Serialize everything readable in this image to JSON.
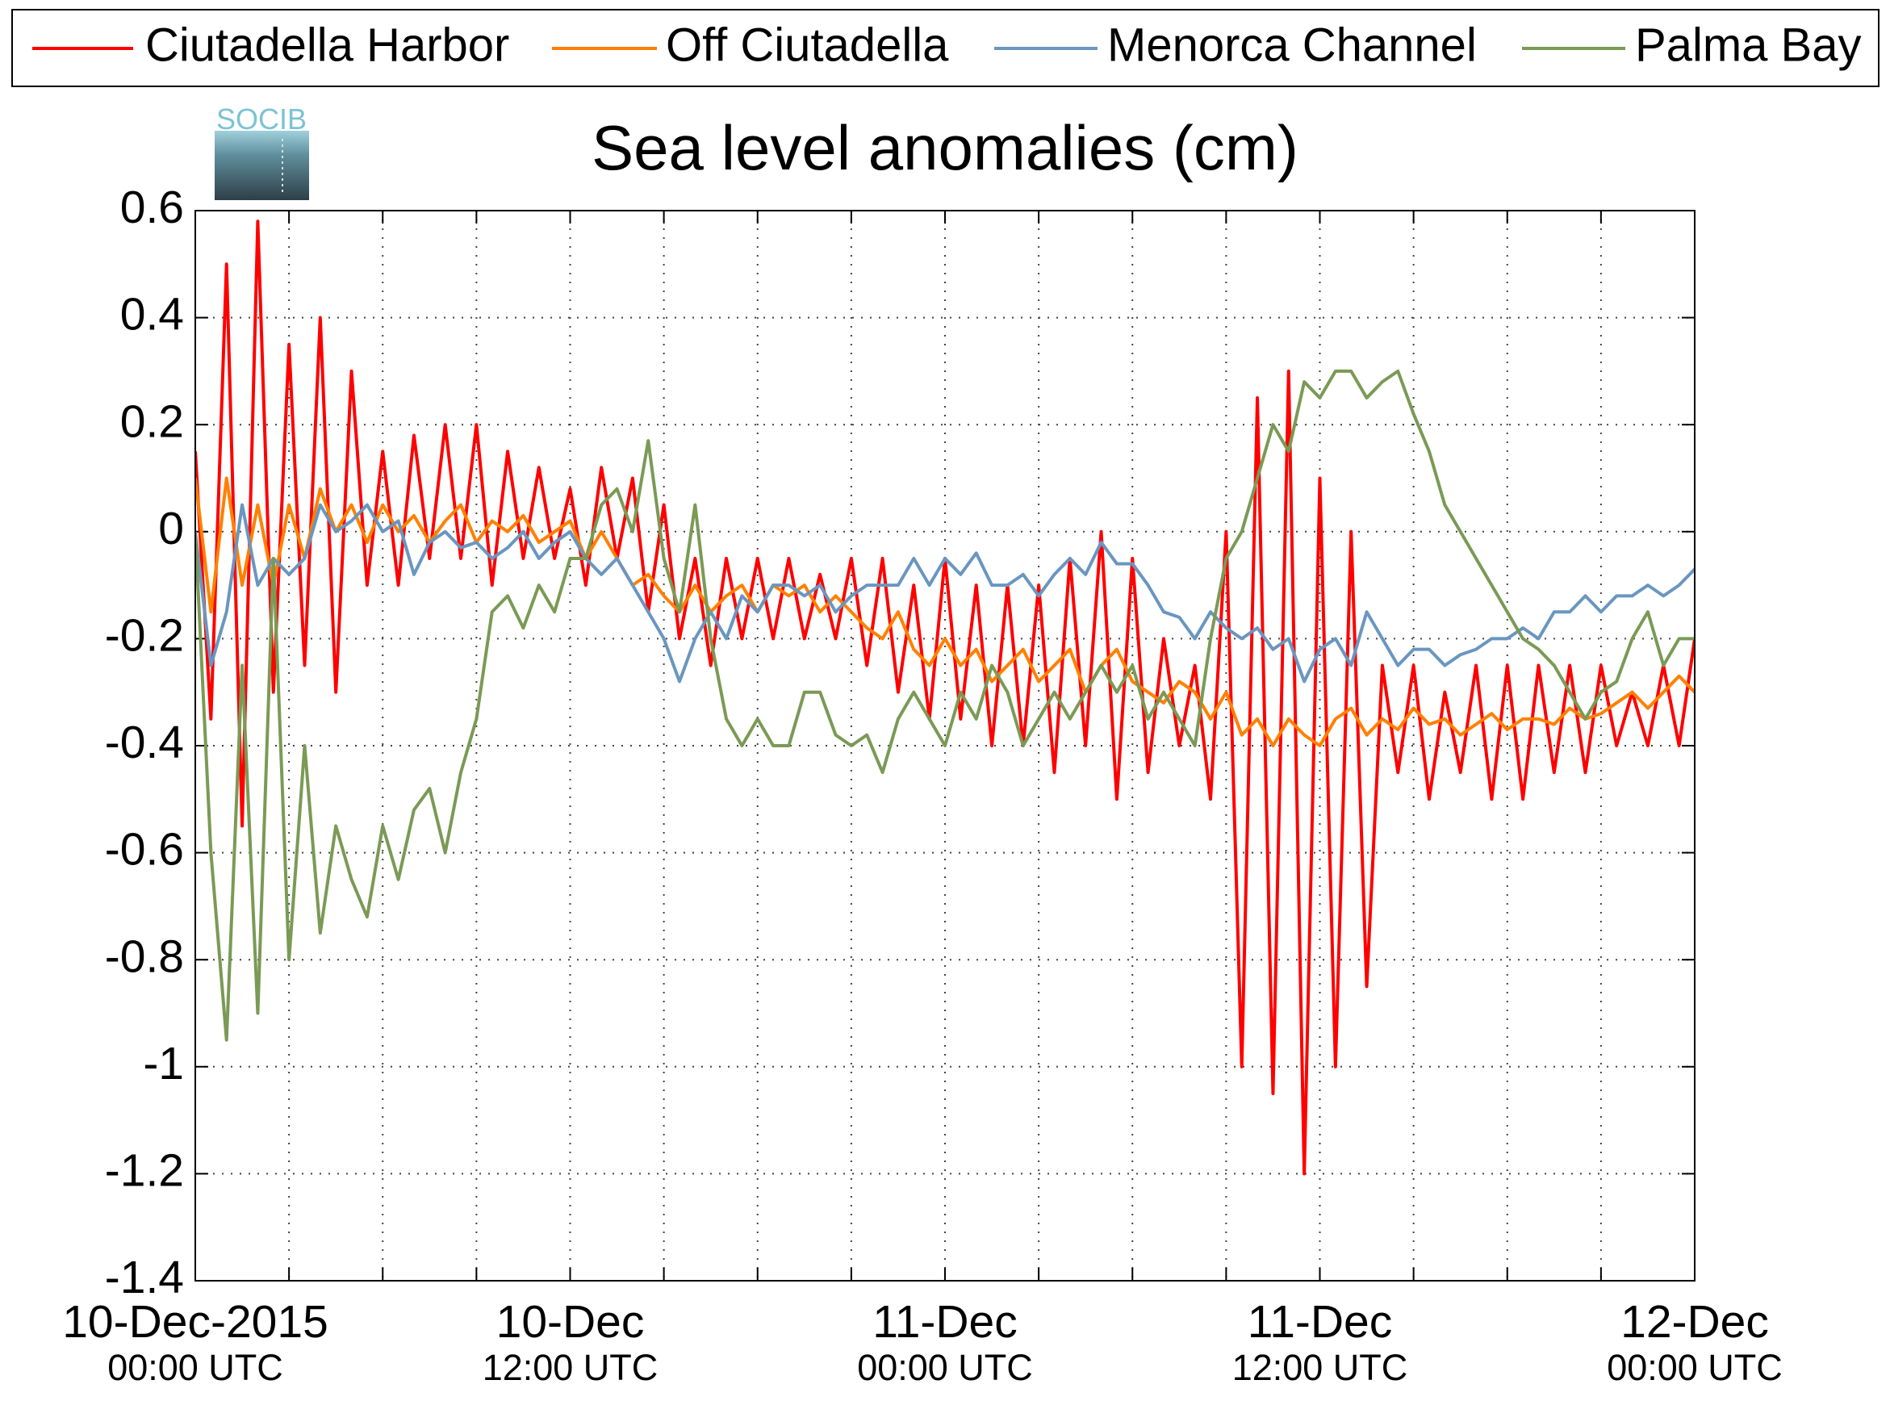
{
  "chart_data": {
    "type": "line",
    "title": "Sea level anomalies (cm)",
    "logo": "SOCIB",
    "legend": "top",
    "grid": true,
    "x": [
      "2015-12-10 00:00",
      "2015-12-10 00:30",
      "2015-12-10 01:00",
      "2015-12-10 01:30",
      "2015-12-10 02:00",
      "2015-12-10 02:30",
      "2015-12-10 03:00",
      "2015-12-10 03:30",
      "2015-12-10 04:00",
      "2015-12-10 04:30",
      "2015-12-10 05:00",
      "2015-12-10 05:30",
      "2015-12-10 06:00",
      "2015-12-10 06:30",
      "2015-12-10 07:00",
      "2015-12-10 07:30",
      "2015-12-10 08:00",
      "2015-12-10 08:30",
      "2015-12-10 09:00",
      "2015-12-10 09:30",
      "2015-12-10 10:00",
      "2015-12-10 10:30",
      "2015-12-10 11:00",
      "2015-12-10 11:30",
      "2015-12-10 12:00",
      "2015-12-10 12:30",
      "2015-12-10 13:00",
      "2015-12-10 13:30",
      "2015-12-10 14:00",
      "2015-12-10 14:30",
      "2015-12-10 15:00",
      "2015-12-10 15:30",
      "2015-12-10 16:00",
      "2015-12-10 16:30",
      "2015-12-10 17:00",
      "2015-12-10 17:30",
      "2015-12-10 18:00",
      "2015-12-10 18:30",
      "2015-12-10 19:00",
      "2015-12-10 19:30",
      "2015-12-10 20:00",
      "2015-12-10 20:30",
      "2015-12-10 21:00",
      "2015-12-10 21:30",
      "2015-12-10 22:00",
      "2015-12-10 22:30",
      "2015-12-10 23:00",
      "2015-12-10 23:30",
      "2015-12-11 00:00",
      "2015-12-11 00:30",
      "2015-12-11 01:00",
      "2015-12-11 01:30",
      "2015-12-11 02:00",
      "2015-12-11 02:30",
      "2015-12-11 03:00",
      "2015-12-11 03:30",
      "2015-12-11 04:00",
      "2015-12-11 04:30",
      "2015-12-11 05:00",
      "2015-12-11 05:30",
      "2015-12-11 06:00",
      "2015-12-11 06:30",
      "2015-12-11 07:00",
      "2015-12-11 07:30",
      "2015-12-11 08:00",
      "2015-12-11 08:30",
      "2015-12-11 09:00",
      "2015-12-11 09:30",
      "2015-12-11 10:00",
      "2015-12-11 10:30",
      "2015-12-11 11:00",
      "2015-12-11 11:30",
      "2015-12-11 12:00",
      "2015-12-11 12:30",
      "2015-12-11 13:00",
      "2015-12-11 13:30",
      "2015-12-11 14:00",
      "2015-12-11 14:30",
      "2015-12-11 15:00",
      "2015-12-11 15:30",
      "2015-12-11 16:00",
      "2015-12-11 16:30",
      "2015-12-11 17:00",
      "2015-12-11 17:30",
      "2015-12-11 18:00",
      "2015-12-11 18:30",
      "2015-12-11 19:00",
      "2015-12-11 19:30",
      "2015-12-11 20:00",
      "2015-12-11 20:30",
      "2015-12-11 21:00",
      "2015-12-11 21:30",
      "2015-12-11 22:00",
      "2015-12-11 22:30",
      "2015-12-11 23:00",
      "2015-12-11 23:30",
      "2015-12-12 00:00"
    ],
    "series": [
      {
        "name": "Ciutadella Harbor",
        "color": "#ff0000",
        "values": [
          0.15,
          -0.35,
          0.5,
          -0.55,
          0.58,
          -0.3,
          0.35,
          -0.25,
          0.4,
          -0.3,
          0.3,
          -0.1,
          0.15,
          -0.1,
          0.18,
          -0.05,
          0.2,
          -0.05,
          0.2,
          -0.1,
          0.15,
          -0.05,
          0.12,
          -0.05,
          0.08,
          -0.1,
          0.12,
          -0.05,
          0.1,
          -0.15,
          0.05,
          -0.2,
          -0.05,
          -0.25,
          -0.05,
          -0.2,
          -0.05,
          -0.2,
          -0.05,
          -0.2,
          -0.08,
          -0.2,
          -0.05,
          -0.25,
          -0.05,
          -0.3,
          -0.1,
          -0.35,
          -0.05,
          -0.35,
          -0.1,
          -0.4,
          -0.1,
          -0.4,
          -0.1,
          -0.45,
          -0.05,
          -0.4,
          0.0,
          -0.5,
          -0.05,
          -0.45,
          -0.2,
          -0.4,
          -0.25,
          -0.5,
          0.0,
          -1.0,
          0.25,
          -1.05,
          0.3,
          -1.2,
          0.1,
          -1.0,
          0.0,
          -0.85,
          -0.25,
          -0.45,
          -0.25,
          -0.5,
          -0.3,
          -0.45,
          -0.25,
          -0.5,
          -0.25,
          -0.5,
          -0.25,
          -0.45,
          -0.25,
          -0.45,
          -0.25,
          -0.4,
          -0.3,
          -0.4,
          -0.25,
          -0.4,
          -0.2
        ]
      },
      {
        "name": "Off Ciutadella",
        "color": "#ff8000",
        "values": [
          0.1,
          -0.15,
          0.1,
          -0.1,
          0.05,
          -0.1,
          0.05,
          -0.05,
          0.08,
          0.0,
          0.05,
          -0.02,
          0.05,
          0.0,
          0.03,
          -0.02,
          0.02,
          0.05,
          -0.02,
          0.02,
          0.0,
          0.03,
          -0.02,
          0.0,
          0.02,
          -0.05,
          0.0,
          -0.05,
          -0.1,
          -0.08,
          -0.12,
          -0.15,
          -0.1,
          -0.15,
          -0.12,
          -0.1,
          -0.15,
          -0.1,
          -0.12,
          -0.1,
          -0.15,
          -0.12,
          -0.15,
          -0.18,
          -0.2,
          -0.15,
          -0.22,
          -0.25,
          -0.2,
          -0.25,
          -0.22,
          -0.28,
          -0.25,
          -0.22,
          -0.28,
          -0.25,
          -0.22,
          -0.3,
          -0.25,
          -0.22,
          -0.28,
          -0.3,
          -0.32,
          -0.28,
          -0.3,
          -0.35,
          -0.3,
          -0.38,
          -0.35,
          -0.4,
          -0.35,
          -0.38,
          -0.4,
          -0.35,
          -0.33,
          -0.38,
          -0.35,
          -0.37,
          -0.33,
          -0.36,
          -0.35,
          -0.38,
          -0.36,
          -0.34,
          -0.37,
          -0.35,
          -0.35,
          -0.36,
          -0.33,
          -0.35,
          -0.34,
          -0.32,
          -0.3,
          -0.33,
          -0.3,
          -0.27,
          -0.3
        ]
      },
      {
        "name": "Menorca Channel",
        "color": "#6a96c0",
        "values": [
          0,
          -0.25,
          -0.15,
          0.05,
          -0.1,
          -0.05,
          -0.08,
          -0.05,
          0.05,
          0.0,
          0.02,
          0.05,
          0.0,
          0.02,
          -0.08,
          -0.02,
          0.0,
          -0.03,
          -0.02,
          -0.05,
          -0.03,
          0.0,
          -0.05,
          -0.02,
          0.0,
          -0.05,
          -0.08,
          -0.05,
          -0.1,
          -0.15,
          -0.2,
          -0.28,
          -0.2,
          -0.15,
          -0.2,
          -0.12,
          -0.15,
          -0.1,
          -0.1,
          -0.12,
          -0.1,
          -0.15,
          -0.12,
          -0.1,
          -0.1,
          -0.1,
          -0.05,
          -0.1,
          -0.05,
          -0.08,
          -0.04,
          -0.1,
          -0.1,
          -0.08,
          -0.12,
          -0.08,
          -0.05,
          -0.08,
          -0.02,
          -0.06,
          -0.06,
          -0.1,
          -0.15,
          -0.16,
          -0.2,
          -0.15,
          -0.18,
          -0.2,
          -0.18,
          -0.22,
          -0.2,
          -0.28,
          -0.22,
          -0.2,
          -0.25,
          -0.15,
          -0.2,
          -0.25,
          -0.22,
          -0.22,
          -0.25,
          -0.23,
          -0.22,
          -0.2,
          -0.2,
          -0.18,
          -0.2,
          -0.15,
          -0.15,
          -0.12,
          -0.15,
          -0.12,
          -0.12,
          -0.1,
          -0.12,
          -0.1,
          -0.07
        ]
      },
      {
        "name": "Palma Bay",
        "color": "#7a9a55",
        "values": [
          0,
          -0.6,
          -0.95,
          -0.25,
          -0.9,
          -0.05,
          -0.8,
          -0.4,
          -0.75,
          -0.55,
          -0.65,
          -0.72,
          -0.55,
          -0.65,
          -0.52,
          -0.48,
          -0.6,
          -0.45,
          -0.35,
          -0.15,
          -0.12,
          -0.18,
          -0.1,
          -0.15,
          -0.05,
          -0.05,
          0.05,
          0.08,
          0.0,
          0.17,
          -0.05,
          -0.15,
          0.05,
          -0.2,
          -0.35,
          -0.4,
          -0.35,
          -0.4,
          -0.4,
          -0.3,
          -0.3,
          -0.38,
          -0.4,
          -0.38,
          -0.45,
          -0.35,
          -0.3,
          -0.35,
          -0.4,
          -0.3,
          -0.35,
          -0.25,
          -0.3,
          -0.4,
          -0.35,
          -0.3,
          -0.35,
          -0.3,
          -0.25,
          -0.3,
          -0.25,
          -0.35,
          -0.3,
          -0.35,
          -0.4,
          -0.2,
          -0.05,
          0.0,
          0.1,
          0.2,
          0.15,
          0.28,
          0.25,
          0.3,
          0.3,
          0.25,
          0.28,
          0.3,
          0.22,
          0.15,
          0.05,
          0.0,
          -0.05,
          -0.1,
          -0.15,
          -0.2,
          -0.22,
          -0.25,
          -0.3,
          -0.35,
          -0.3,
          -0.28,
          -0.2,
          -0.15,
          -0.25,
          -0.2,
          -0.2
        ]
      }
    ],
    "xlim": [
      "2015-12-10 00:00",
      "2015-12-12 00:00"
    ],
    "xticks": [
      {
        "value": "2015-12-10 00:00",
        "label": [
          "10-Dec-2015",
          "00:00 UTC"
        ]
      },
      {
        "value": "2015-12-10 12:00",
        "label": [
          "10-Dec",
          "12:00 UTC"
        ]
      },
      {
        "value": "2015-12-11 00:00",
        "label": [
          "11-Dec",
          "00:00 UTC"
        ]
      },
      {
        "value": "2015-12-11 12:00",
        "label": [
          "11-Dec",
          "12:00 UTC"
        ]
      },
      {
        "value": "2015-12-12 00:00",
        "label": [
          "12-Dec",
          "00:00 UTC"
        ]
      }
    ],
    "xminorticks": [
      "2015-12-10 03:00",
      "2015-12-10 06:00",
      "2015-12-10 09:00",
      "2015-12-10 15:00",
      "2015-12-10 18:00",
      "2015-12-10 21:00",
      "2015-12-11 03:00",
      "2015-12-11 06:00",
      "2015-12-11 09:00",
      "2015-12-11 15:00",
      "2015-12-11 18:00",
      "2015-12-11 21:00"
    ],
    "ylim": [
      -1.4,
      0.6
    ],
    "yticks": [
      -1.4,
      -1.2,
      -1,
      -0.8,
      -0.6,
      -0.4,
      -0.2,
      0,
      0.2,
      0.4,
      0.6
    ]
  }
}
